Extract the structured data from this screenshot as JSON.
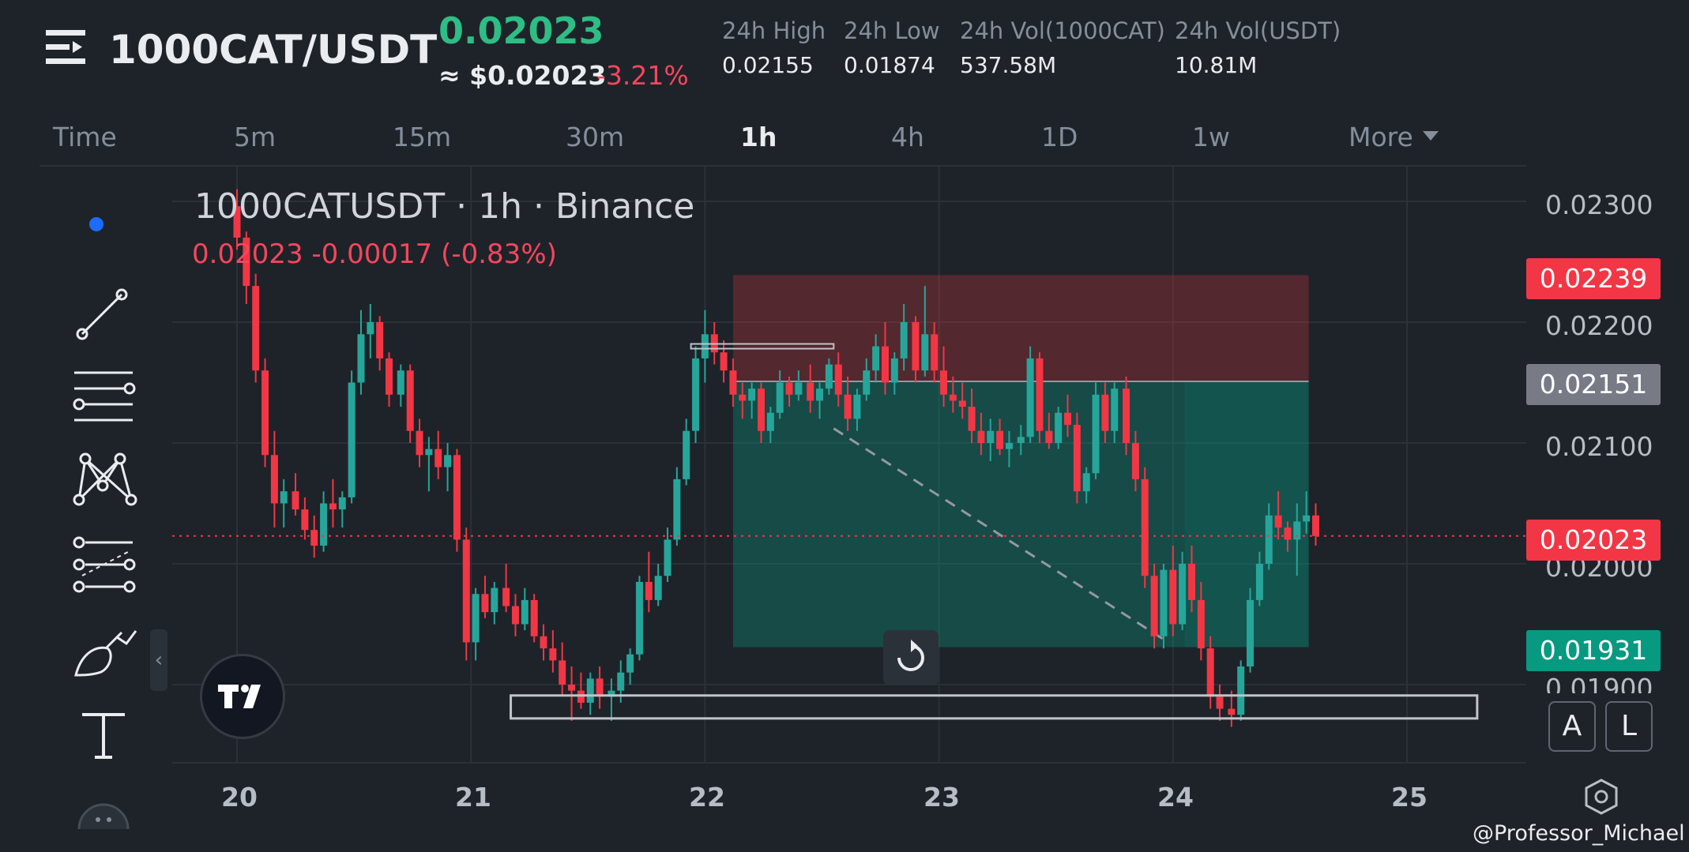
{
  "header": {
    "pair": "1000CAT/USDT",
    "last_price": "0.02023",
    "approx_usd": "≈ $0.02023",
    "change_pct": "-3.21%",
    "stats": [
      {
        "label": "24h High",
        "value": "0.02155"
      },
      {
        "label": "24h Low",
        "value": "0.01874"
      },
      {
        "label": "24h Vol(1000CAT)",
        "value": "537.58M"
      },
      {
        "label": "24h Vol(USDT)",
        "value": "10.81M"
      }
    ]
  },
  "timeframes": {
    "items": [
      "Time",
      "5m",
      "15m",
      "30m",
      "1h",
      "4h",
      "1D",
      "1w",
      "More"
    ],
    "active": "1h"
  },
  "toolbar": {
    "icons": [
      "indicator-dot-icon",
      "trend-line-icon",
      "horizontal-lines-icon",
      "pattern-icon",
      "fib-icon",
      "brush-icon",
      "text-icon",
      "more-icon"
    ]
  },
  "chart_data": {
    "type": "candlestick",
    "symbol_legend": "1000CATUSDT · 1h · Binance",
    "ohlc_legend": "0.02023  -0.00017 (-0.83%)",
    "x_ticks": [
      "20",
      "21",
      "22",
      "23",
      "24",
      "25"
    ],
    "y_ticks": [
      "0.02300",
      "0.02200",
      "0.02100",
      "0.02000",
      "0.01900"
    ],
    "ylim": [
      0.01855,
      0.0234
    ],
    "price_badges": [
      {
        "value": "0.02239",
        "color": "#f23645"
      },
      {
        "value": "0.02151",
        "color": "#787b86"
      },
      {
        "value": "0.02023",
        "color": "#f23645"
      },
      {
        "value": "0.01931",
        "color": "#089981"
      }
    ],
    "current_price": 0.02023,
    "position_tool": {
      "entry": 0.02151,
      "stop": 0.02239,
      "target": 0.01931,
      "x_start_day": 22.12,
      "x_end_day": 24.58
    },
    "support_zone": {
      "low": 0.01872,
      "high": 0.01891,
      "x_start_day": 21.17,
      "x_end_day": 25.3
    },
    "up_color": "#26a69a",
    "down_color": "#f23645",
    "candles": [
      [
        20.0,
        0.02296,
        0.0231,
        0.0226,
        0.0227
      ],
      [
        20.04,
        0.0227,
        0.02275,
        0.02215,
        0.0223
      ],
      [
        20.08,
        0.0223,
        0.0224,
        0.0215,
        0.0216
      ],
      [
        20.12,
        0.0216,
        0.0217,
        0.0208,
        0.0209
      ],
      [
        20.16,
        0.0209,
        0.0211,
        0.0203,
        0.0205
      ],
      [
        20.2,
        0.0205,
        0.0207,
        0.0203,
        0.0206
      ],
      [
        20.25,
        0.0206,
        0.02075,
        0.0204,
        0.02045
      ],
      [
        20.29,
        0.02045,
        0.02055,
        0.0202,
        0.02028
      ],
      [
        20.33,
        0.02028,
        0.0204,
        0.02005,
        0.02015
      ],
      [
        20.37,
        0.02015,
        0.0206,
        0.0201,
        0.0205
      ],
      [
        20.41,
        0.0205,
        0.0207,
        0.0203,
        0.02045
      ],
      [
        20.45,
        0.02045,
        0.0206,
        0.0203,
        0.02055
      ],
      [
        20.49,
        0.02055,
        0.0216,
        0.0205,
        0.0215
      ],
      [
        20.53,
        0.0215,
        0.0221,
        0.0214,
        0.0219
      ],
      [
        20.57,
        0.0219,
        0.02215,
        0.0217,
        0.022
      ],
      [
        20.61,
        0.022,
        0.02205,
        0.0216,
        0.0217
      ],
      [
        20.65,
        0.0217,
        0.02175,
        0.0213,
        0.0214
      ],
      [
        20.7,
        0.0214,
        0.02165,
        0.0213,
        0.0216
      ],
      [
        20.74,
        0.0216,
        0.02165,
        0.021,
        0.0211
      ],
      [
        20.78,
        0.0211,
        0.0212,
        0.0208,
        0.0209
      ],
      [
        20.82,
        0.0209,
        0.02105,
        0.0206,
        0.02095
      ],
      [
        20.86,
        0.02095,
        0.0211,
        0.0207,
        0.0208
      ],
      [
        20.9,
        0.0208,
        0.021,
        0.0206,
        0.0209
      ],
      [
        20.94,
        0.0209,
        0.02095,
        0.0201,
        0.0202
      ],
      [
        20.98,
        0.0202,
        0.0203,
        0.0192,
        0.01935
      ],
      [
        21.02,
        0.01935,
        0.0198,
        0.0192,
        0.01975
      ],
      [
        21.06,
        0.01975,
        0.0199,
        0.01955,
        0.0196
      ],
      [
        21.1,
        0.0196,
        0.01985,
        0.0195,
        0.0198
      ],
      [
        21.15,
        0.0198,
        0.02,
        0.0196,
        0.01965
      ],
      [
        21.19,
        0.01965,
        0.01975,
        0.0194,
        0.0195
      ],
      [
        21.23,
        0.0195,
        0.0198,
        0.01945,
        0.0197
      ],
      [
        21.27,
        0.0197,
        0.01975,
        0.01935,
        0.0194
      ],
      [
        21.31,
        0.0194,
        0.0195,
        0.0192,
        0.0193
      ],
      [
        21.35,
        0.0193,
        0.01945,
        0.0191,
        0.0192
      ],
      [
        21.39,
        0.0192,
        0.01935,
        0.0189,
        0.019
      ],
      [
        21.43,
        0.019,
        0.01915,
        0.0187,
        0.01895
      ],
      [
        21.47,
        0.01895,
        0.0191,
        0.0188,
        0.01885
      ],
      [
        21.51,
        0.01885,
        0.0191,
        0.01875,
        0.01905
      ],
      [
        21.55,
        0.01905,
        0.01915,
        0.0188,
        0.0189
      ],
      [
        21.6,
        0.0189,
        0.01905,
        0.0187,
        0.01895
      ],
      [
        21.64,
        0.01895,
        0.0192,
        0.01885,
        0.0191
      ],
      [
        21.68,
        0.0191,
        0.0193,
        0.019,
        0.01925
      ],
      [
        21.72,
        0.01925,
        0.0199,
        0.0192,
        0.01985
      ],
      [
        21.76,
        0.01985,
        0.0201,
        0.0196,
        0.0197
      ],
      [
        21.8,
        0.0197,
        0.02,
        0.01965,
        0.0199
      ],
      [
        21.84,
        0.0199,
        0.0203,
        0.01985,
        0.0202
      ],
      [
        21.88,
        0.0202,
        0.0208,
        0.02015,
        0.0207
      ],
      [
        21.92,
        0.0207,
        0.0212,
        0.02065,
        0.0211
      ],
      [
        21.96,
        0.0211,
        0.0218,
        0.021,
        0.0217
      ],
      [
        22.0,
        0.0217,
        0.0221,
        0.0215,
        0.0219
      ],
      [
        22.04,
        0.0219,
        0.022,
        0.02165,
        0.02175
      ],
      [
        22.08,
        0.02175,
        0.02185,
        0.0215,
        0.0216
      ],
      [
        22.12,
        0.0216,
        0.0217,
        0.0213,
        0.0214
      ],
      [
        22.16,
        0.0214,
        0.0215,
        0.0212,
        0.02135
      ],
      [
        22.2,
        0.02135,
        0.0215,
        0.0212,
        0.02145
      ],
      [
        22.24,
        0.02145,
        0.0215,
        0.021,
        0.0211
      ],
      [
        22.28,
        0.0211,
        0.0213,
        0.021,
        0.02125
      ],
      [
        22.32,
        0.02125,
        0.0216,
        0.0212,
        0.0215
      ],
      [
        22.36,
        0.0215,
        0.02155,
        0.0213,
        0.0214
      ],
      [
        22.4,
        0.0214,
        0.0216,
        0.02135,
        0.0215
      ],
      [
        22.45,
        0.0215,
        0.02165,
        0.02125,
        0.02135
      ],
      [
        22.49,
        0.02135,
        0.0215,
        0.0212,
        0.02145
      ],
      [
        22.53,
        0.02145,
        0.0217,
        0.0214,
        0.02165
      ],
      [
        22.57,
        0.02165,
        0.02175,
        0.0213,
        0.0214
      ],
      [
        22.61,
        0.0214,
        0.02155,
        0.0211,
        0.0212
      ],
      [
        22.65,
        0.0212,
        0.02145,
        0.0211,
        0.0214
      ],
      [
        22.69,
        0.0214,
        0.0217,
        0.02135,
        0.0216
      ],
      [
        22.73,
        0.0216,
        0.0219,
        0.0215,
        0.0218
      ],
      [
        22.77,
        0.0218,
        0.022,
        0.0214,
        0.0215
      ],
      [
        22.81,
        0.0215,
        0.02175,
        0.0214,
        0.0217
      ],
      [
        22.85,
        0.0217,
        0.02215,
        0.0216,
        0.022
      ],
      [
        22.9,
        0.022,
        0.02205,
        0.0215,
        0.0216
      ],
      [
        22.94,
        0.0216,
        0.0223,
        0.02155,
        0.0219
      ],
      [
        22.98,
        0.0219,
        0.022,
        0.0215,
        0.0216
      ],
      [
        23.02,
        0.0216,
        0.0218,
        0.0213,
        0.0214
      ],
      [
        23.06,
        0.0214,
        0.02155,
        0.02125,
        0.02135
      ],
      [
        23.1,
        0.02135,
        0.0215,
        0.0212,
        0.0213
      ],
      [
        23.14,
        0.0213,
        0.02145,
        0.021,
        0.0211
      ],
      [
        23.18,
        0.0211,
        0.02125,
        0.0209,
        0.021
      ],
      [
        23.22,
        0.021,
        0.0212,
        0.02085,
        0.0211
      ],
      [
        23.26,
        0.0211,
        0.0212,
        0.0209,
        0.02095
      ],
      [
        23.3,
        0.02095,
        0.0211,
        0.0208,
        0.021
      ],
      [
        23.35,
        0.021,
        0.02115,
        0.0209,
        0.02105
      ],
      [
        23.39,
        0.02105,
        0.0218,
        0.021,
        0.0217
      ],
      [
        23.43,
        0.0217,
        0.02175,
        0.021,
        0.0211
      ],
      [
        23.47,
        0.0211,
        0.02125,
        0.02095,
        0.021
      ],
      [
        23.51,
        0.021,
        0.0213,
        0.02095,
        0.02125
      ],
      [
        23.55,
        0.02125,
        0.0214,
        0.02105,
        0.02115
      ],
      [
        23.59,
        0.02115,
        0.02125,
        0.0205,
        0.0206
      ],
      [
        23.63,
        0.0206,
        0.0208,
        0.0205,
        0.02075
      ],
      [
        23.67,
        0.02075,
        0.0215,
        0.0207,
        0.0214
      ],
      [
        23.71,
        0.0214,
        0.0215,
        0.021,
        0.0211
      ],
      [
        23.75,
        0.0211,
        0.0215,
        0.021,
        0.02145
      ],
      [
        23.8,
        0.02145,
        0.02155,
        0.0209,
        0.021
      ],
      [
        23.84,
        0.021,
        0.0211,
        0.0206,
        0.0207
      ],
      [
        23.88,
        0.0207,
        0.0208,
        0.0198,
        0.0199
      ],
      [
        23.92,
        0.0199,
        0.02,
        0.0193,
        0.0194
      ],
      [
        23.96,
        0.0194,
        0.02,
        0.0193,
        0.01995
      ],
      [
        24.0,
        0.01995,
        0.02015,
        0.0194,
        0.0195
      ],
      [
        24.04,
        0.0195,
        0.0201,
        0.01945,
        0.02
      ],
      [
        24.08,
        0.02,
        0.02015,
        0.0196,
        0.0197
      ],
      [
        24.12,
        0.0197,
        0.01985,
        0.0192,
        0.0193
      ],
      [
        24.16,
        0.0193,
        0.0194,
        0.0188,
        0.0189
      ],
      [
        24.2,
        0.0189,
        0.019,
        0.0187,
        0.0188
      ],
      [
        24.25,
        0.0188,
        0.01895,
        0.01865,
        0.01875
      ],
      [
        24.29,
        0.01875,
        0.0192,
        0.0187,
        0.01915
      ],
      [
        24.33,
        0.01915,
        0.0198,
        0.0191,
        0.0197
      ],
      [
        24.37,
        0.0197,
        0.0201,
        0.01965,
        0.02
      ],
      [
        24.41,
        0.02,
        0.0205,
        0.01995,
        0.0204
      ],
      [
        24.45,
        0.0204,
        0.0206,
        0.0202,
        0.0203
      ],
      [
        24.49,
        0.0203,
        0.02035,
        0.0201,
        0.0202
      ],
      [
        24.53,
        0.0202,
        0.0205,
        0.0199,
        0.02035
      ],
      [
        24.57,
        0.02035,
        0.0206,
        0.02025,
        0.0204
      ],
      [
        24.61,
        0.0204,
        0.0205,
        0.02015,
        0.02023
      ]
    ]
  },
  "controls": {
    "auto_label": "A",
    "log_label": "L"
  },
  "watermark": "@Professor_Michael"
}
